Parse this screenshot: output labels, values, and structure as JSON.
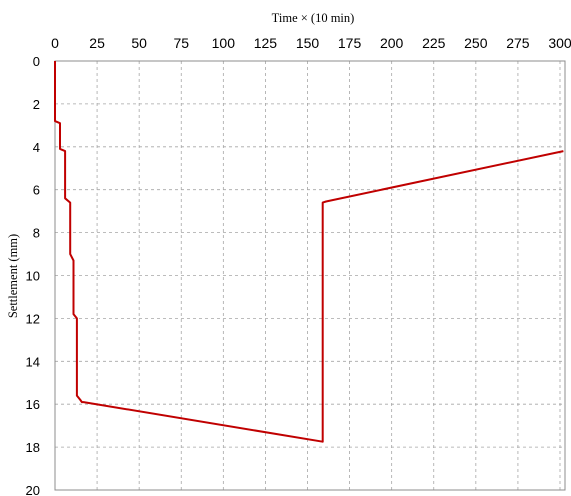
{
  "chart_data": {
    "type": "line",
    "xlabel": "Time × (10 min)",
    "ylabel": "Settlement (mm)",
    "x_axis_position": "top",
    "y_axis_inverted": true,
    "xlim": [
      0,
      300
    ],
    "ylim": [
      0,
      20
    ],
    "xticks": [
      0,
      25,
      50,
      75,
      100,
      125,
      150,
      175,
      200,
      225,
      250,
      275,
      300
    ],
    "yticks": [
      0,
      2,
      4,
      6,
      8,
      10,
      12,
      14,
      16,
      18,
      20
    ],
    "grid": true,
    "line_color": "#c00000",
    "series": [
      {
        "x": [
          0,
          0,
          3,
          3,
          6,
          6,
          9,
          9,
          11,
          11,
          13,
          13,
          15,
          15,
          16,
          17,
          159,
          159,
          161,
          302
        ],
        "y": [
          0,
          2.8,
          2.9,
          4.1,
          4.2,
          6.4,
          6.6,
          9.0,
          9.3,
          11.8,
          12.0,
          15.6,
          15.8,
          15.8,
          15.9,
          15.9,
          17.75,
          6.6,
          6.55,
          4.2
        ]
      }
    ]
  }
}
